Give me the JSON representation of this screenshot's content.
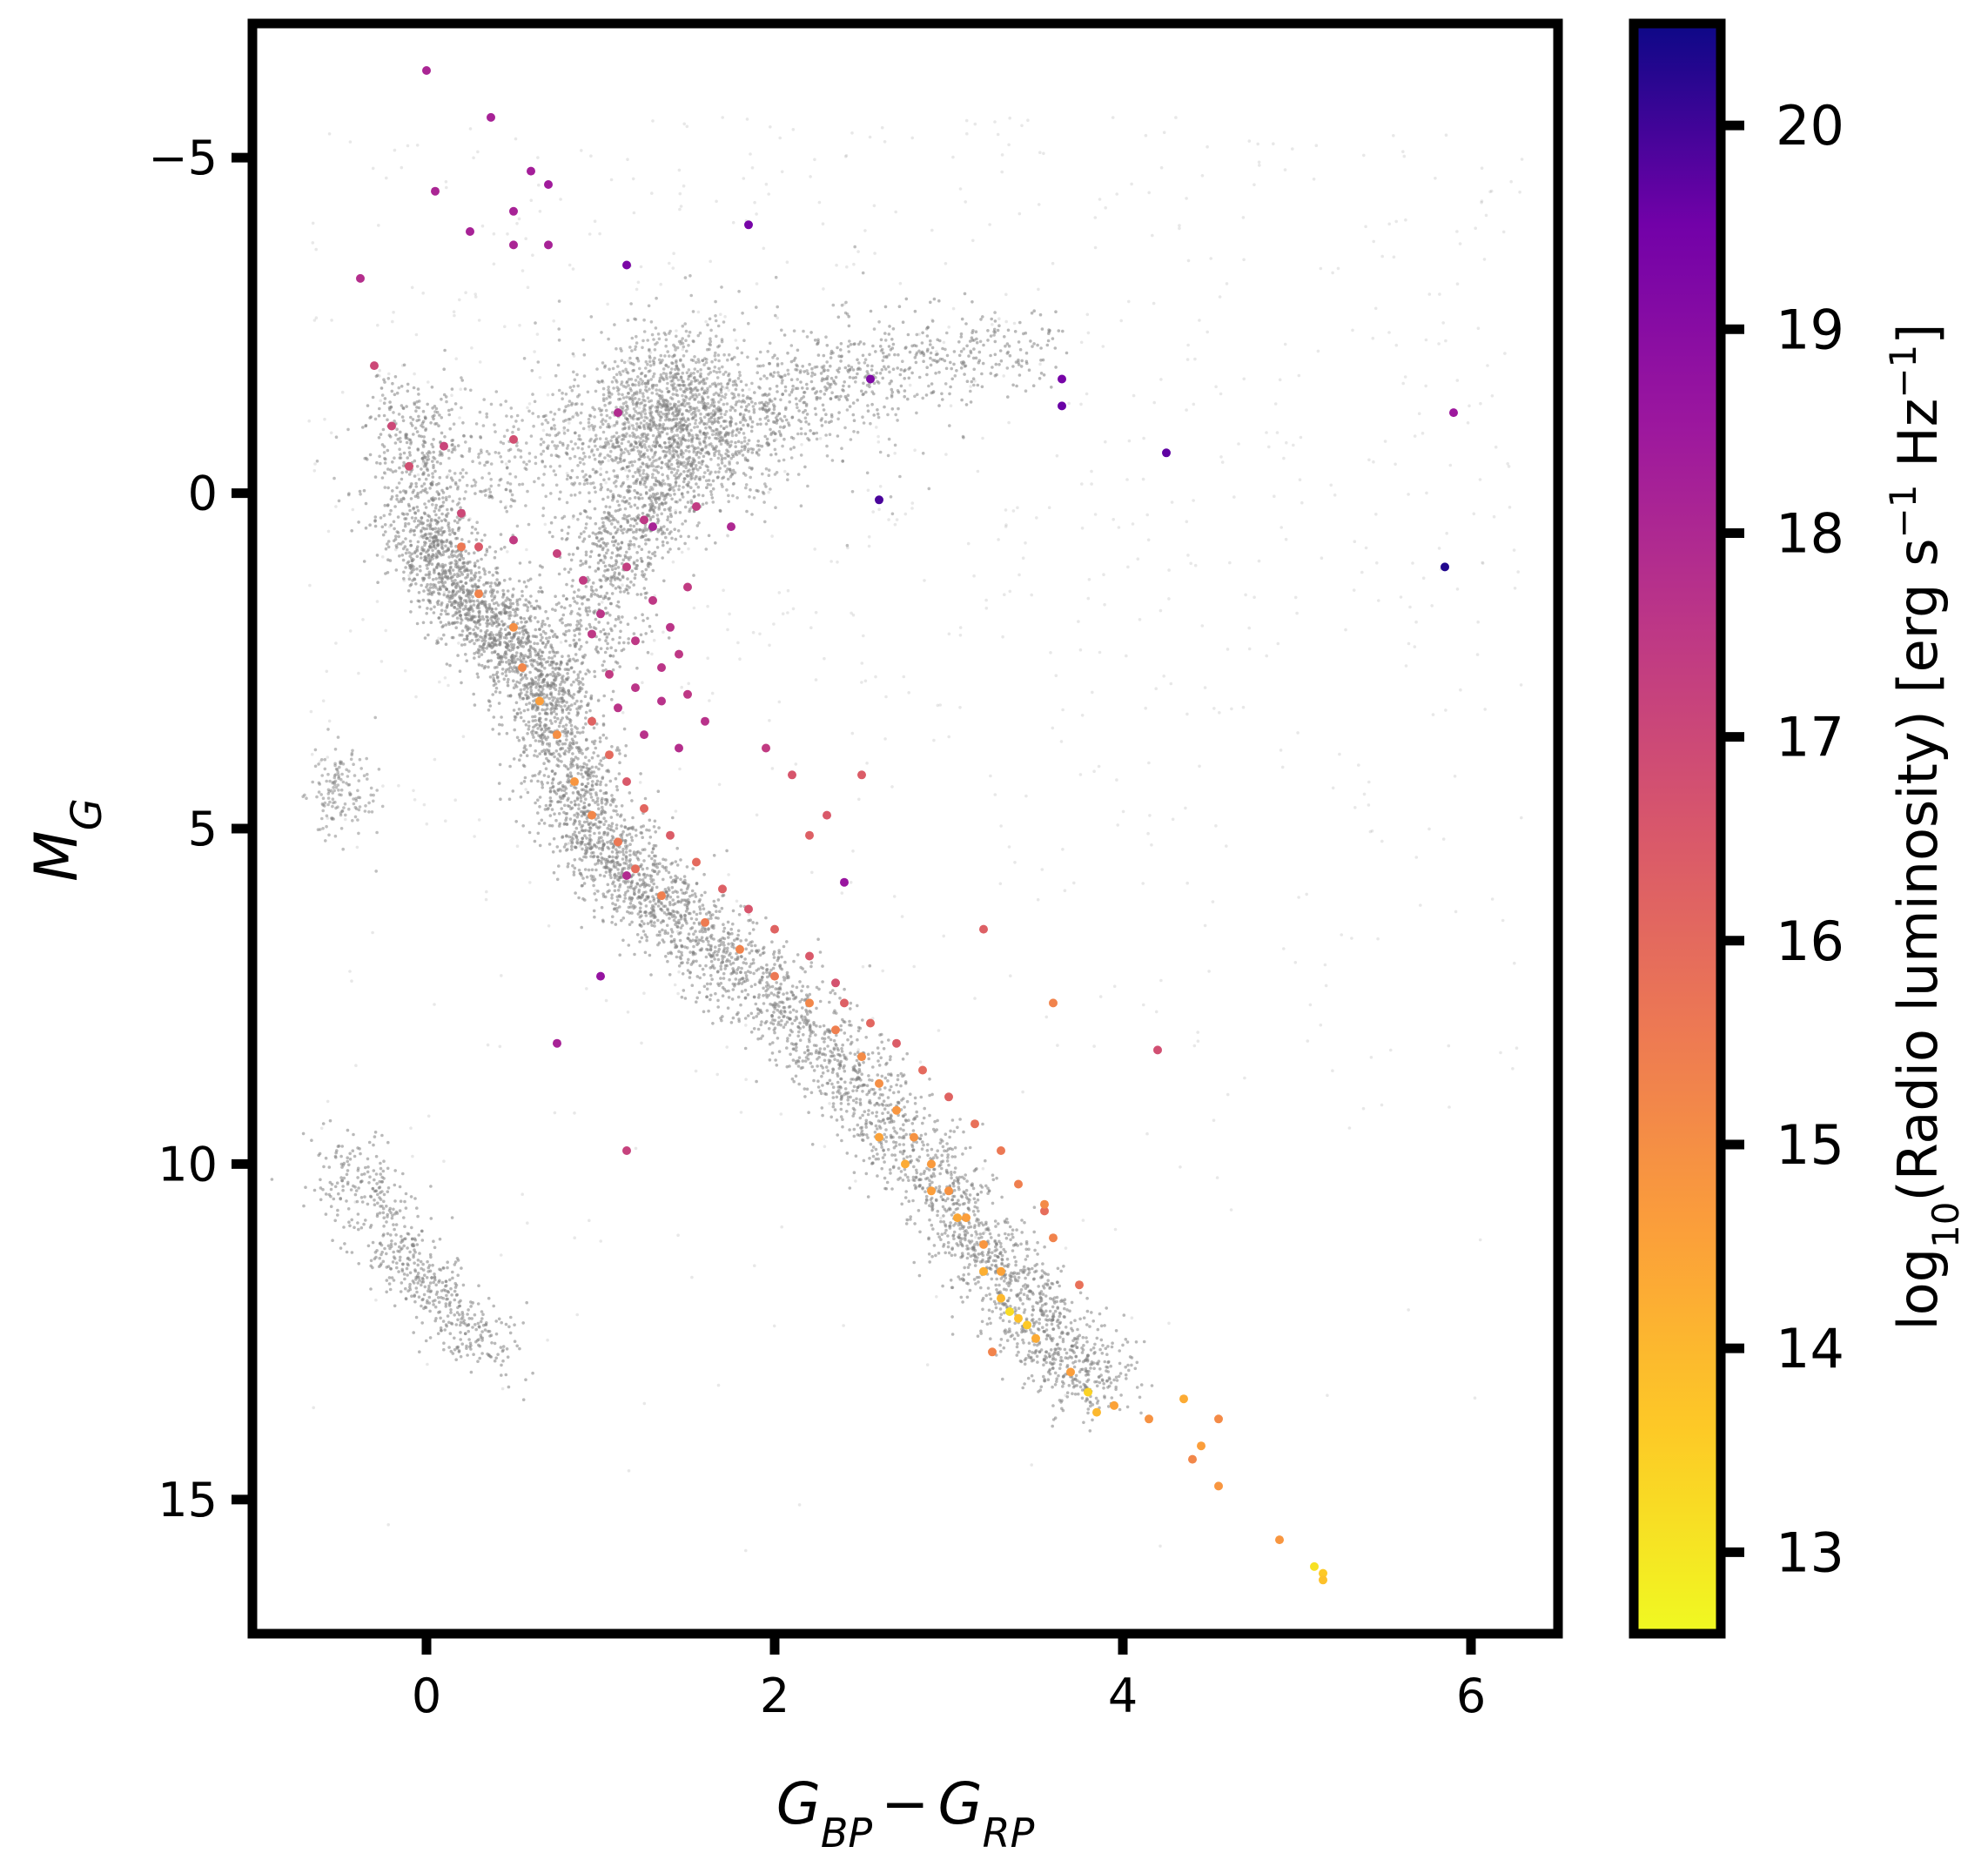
{
  "chart_data": {
    "type": "scatter",
    "title": "",
    "xlabel": {
      "base": "G",
      "sub1": "BP",
      "minus": "−",
      "base2": "G",
      "sub2": "RP"
    },
    "ylabel": {
      "base": "M",
      "sub": "G"
    },
    "xlim": [
      -1.0,
      6.5
    ],
    "ylim": [
      17.0,
      -7.0
    ],
    "x_ticks": [
      0,
      2,
      4,
      6
    ],
    "y_ticks": [
      -5,
      0,
      5,
      10,
      15
    ],
    "x_tick_labels": [
      "0",
      "2",
      "4",
      "6"
    ],
    "y_tick_labels": [
      "−5",
      "0",
      "5",
      "10",
      "15"
    ],
    "grid": false,
    "colorbar": {
      "label_prefix": "log",
      "label_sub": "10",
      "label_main": "(Radio luminosity) [erg s",
      "label_sup1": "−1",
      "label_mid": " Hz",
      "label_sup2": "−1",
      "label_end": "]",
      "colormap": "plasma",
      "range": [
        12.6,
        20.5
      ],
      "ticks": [
        13,
        14,
        15,
        16,
        17,
        18,
        19,
        20
      ],
      "tick_labels": [
        "13",
        "14",
        "15",
        "16",
        "17",
        "18",
        "19",
        "20"
      ]
    },
    "series": [
      {
        "role": "background",
        "color": "#808080",
        "description_of_density": "Gaia reference sample",
        "clumps": [
          {
            "cx": 1.4,
            "cy": -1.2,
            "sx": 0.25,
            "sy": 0.6,
            "n": 1200
          },
          {
            "cx": 0.8,
            "cy": -0.5,
            "sx": 0.5,
            "sy": 0.5,
            "n": 500
          },
          {
            "cx": 2.0,
            "cy": -1.5,
            "sx": 0.6,
            "sy": 0.7,
            "n": 300
          },
          {
            "cx": -0.5,
            "cy": 4.4,
            "sx": 0.1,
            "sy": 0.4,
            "n": 150
          }
        ],
        "tracks": [
          {
            "points": [
              [
                -0.1,
                -1.5
              ],
              [
                0.0,
                0.5
              ],
              [
                0.1,
                1.2
              ],
              [
                0.3,
                1.8
              ],
              [
                0.5,
                2.2
              ],
              [
                0.7,
                2.9
              ],
              [
                0.8,
                3.8
              ],
              [
                0.9,
                4.9
              ],
              [
                1.1,
                5.6
              ],
              [
                1.4,
                6.3
              ],
              [
                1.8,
                7.1
              ],
              [
                2.2,
                8.0
              ],
              [
                2.6,
                9.2
              ],
              [
                3.0,
                10.5
              ],
              [
                3.3,
                11.6
              ],
              [
                3.6,
                12.6
              ],
              [
                3.9,
                13.4
              ]
            ],
            "width": 0.14,
            "n": 5500
          },
          {
            "points": [
              [
                0.9,
                2.5
              ],
              [
                1.0,
                1.5
              ],
              [
                1.1,
                0.6
              ],
              [
                1.3,
                0.2
              ],
              [
                1.7,
                -0.8
              ],
              [
                2.2,
                -1.6
              ],
              [
                2.8,
                -2.0
              ],
              [
                3.5,
                -2.2
              ]
            ],
            "width": 0.16,
            "n": 1400
          },
          {
            "points": [
              [
                -0.5,
                9.8
              ],
              [
                -0.3,
                10.6
              ],
              [
                -0.1,
                11.5
              ],
              [
                0.1,
                12.1
              ],
              [
                0.4,
                12.8
              ]
            ],
            "width": 0.12,
            "n": 600
          }
        ],
        "scatter_halo": {
          "xmin": -0.7,
          "xmax": 6.3,
          "ymin": -5.6,
          "ymax": 16.2,
          "n": 900
        }
      },
      {
        "role": "radio",
        "name": "",
        "points": [
          [
            0.0,
            -6.3,
            18.1
          ],
          [
            0.37,
            -5.6,
            18.2
          ],
          [
            0.05,
            -4.5,
            18.1
          ],
          [
            0.6,
            -4.8,
            18.3
          ],
          [
            0.7,
            -4.6,
            18.4
          ],
          [
            0.25,
            -3.9,
            18.2
          ],
          [
            0.5,
            -3.7,
            18.1
          ],
          [
            0.7,
            -3.7,
            18.2
          ],
          [
            -0.38,
            -3.2,
            17.8
          ],
          [
            1.85,
            -4.0,
            19.4
          ],
          [
            1.15,
            -3.4,
            19.3
          ],
          [
            0.5,
            -4.2,
            18.2
          ],
          [
            2.55,
            -1.7,
            19.2
          ],
          [
            3.65,
            -1.7,
            19.4
          ],
          [
            3.65,
            -1.3,
            19.6
          ],
          [
            4.25,
            -0.6,
            19.7
          ],
          [
            2.6,
            0.1,
            19.9
          ],
          [
            5.85,
            1.1,
            20.3
          ],
          [
            5.9,
            -1.2,
            18.5
          ],
          [
            -0.3,
            -1.9,
            17.0
          ],
          [
            0.5,
            -0.8,
            16.8
          ],
          [
            1.1,
            -1.2,
            17.9
          ],
          [
            -0.2,
            -1.0,
            17.0
          ],
          [
            0.1,
            -0.7,
            17.1
          ],
          [
            -0.1,
            -0.4,
            16.8
          ],
          [
            0.2,
            0.3,
            17.0
          ],
          [
            0.3,
            0.8,
            16.5
          ],
          [
            0.5,
            0.7,
            17.4
          ],
          [
            1.25,
            0.4,
            17.5
          ],
          [
            1.3,
            0.5,
            18.2
          ],
          [
            1.55,
            0.2,
            17.4
          ],
          [
            1.75,
            0.5,
            18.0
          ],
          [
            0.75,
            0.9,
            17.2
          ],
          [
            0.9,
            1.3,
            17.4
          ],
          [
            1.0,
            1.8,
            17.6
          ],
          [
            1.2,
            2.2,
            17.5
          ],
          [
            1.35,
            2.6,
            17.6
          ],
          [
            1.5,
            3.0,
            17.5
          ],
          [
            1.1,
            3.2,
            17.6
          ],
          [
            1.25,
            3.6,
            17.7
          ],
          [
            1.45,
            3.8,
            17.8
          ],
          [
            1.6,
            3.4,
            17.7
          ],
          [
            1.05,
            2.7,
            17.4
          ],
          [
            1.3,
            1.6,
            17.5
          ],
          [
            1.4,
            2.0,
            17.6
          ],
          [
            1.15,
            1.1,
            17.3
          ],
          [
            0.95,
            2.1,
            17.5
          ],
          [
            1.5,
            1.4,
            17.4
          ],
          [
            1.35,
            3.1,
            17.7
          ],
          [
            1.2,
            2.9,
            17.6
          ],
          [
            1.45,
            2.4,
            17.5
          ],
          [
            0.2,
            0.8,
            15.6
          ],
          [
            0.3,
            1.5,
            15.3
          ],
          [
            0.5,
            2.0,
            15.0
          ],
          [
            0.55,
            2.6,
            15.2
          ],
          [
            0.65,
            3.1,
            14.6
          ],
          [
            0.75,
            3.6,
            15.0
          ],
          [
            0.85,
            4.3,
            14.8
          ],
          [
            0.95,
            4.8,
            15.2
          ],
          [
            1.1,
            5.2,
            15.6
          ],
          [
            1.2,
            5.6,
            15.9
          ],
          [
            1.35,
            6.0,
            15.4
          ],
          [
            0.95,
            3.4,
            16.2
          ],
          [
            1.05,
            3.9,
            16.0
          ],
          [
            1.15,
            4.3,
            16.5
          ],
          [
            1.25,
            4.7,
            16.1
          ],
          [
            1.4,
            5.1,
            16.4
          ],
          [
            1.55,
            5.5,
            16.0
          ],
          [
            1.7,
            5.9,
            16.3
          ],
          [
            1.85,
            6.2,
            16.6
          ],
          [
            2.0,
            6.5,
            16.2
          ],
          [
            2.2,
            6.9,
            16.5
          ],
          [
            2.35,
            7.3,
            16.7
          ],
          [
            1.6,
            6.4,
            15.5
          ],
          [
            1.8,
            6.8,
            15.3
          ],
          [
            2.0,
            7.2,
            15.6
          ],
          [
            2.2,
            7.6,
            15.2
          ],
          [
            2.35,
            8.0,
            15.4
          ],
          [
            2.5,
            8.4,
            15.1
          ],
          [
            2.6,
            8.8,
            15.0
          ],
          [
            2.7,
            9.2,
            14.8
          ],
          [
            2.8,
            9.6,
            14.9
          ],
          [
            2.9,
            10.0,
            14.7
          ],
          [
            3.0,
            10.4,
            14.9
          ],
          [
            3.1,
            10.8,
            14.6
          ],
          [
            3.2,
            11.2,
            14.8
          ],
          [
            3.3,
            11.6,
            14.5
          ],
          [
            2.4,
            7.6,
            16.3
          ],
          [
            2.55,
            7.9,
            16.1
          ],
          [
            2.7,
            8.2,
            16.4
          ],
          [
            2.85,
            8.6,
            16.0
          ],
          [
            3.0,
            9.0,
            16.2
          ],
          [
            3.15,
            9.4,
            15.8
          ],
          [
            3.3,
            9.8,
            15.6
          ],
          [
            3.4,
            10.3,
            15.4
          ],
          [
            3.55,
            10.7,
            15.9
          ],
          [
            3.6,
            11.1,
            15.3
          ],
          [
            2.6,
            9.6,
            14.5
          ],
          [
            2.75,
            10.0,
            14.3
          ],
          [
            2.9,
            10.4,
            14.6
          ],
          [
            3.05,
            10.8,
            14.4
          ],
          [
            3.2,
            11.6,
            14.2
          ],
          [
            3.3,
            12.0,
            14.0
          ],
          [
            3.4,
            12.3,
            13.8
          ],
          [
            3.5,
            12.6,
            14.3
          ],
          [
            2.1,
            4.2,
            16.6
          ],
          [
            2.3,
            4.8,
            16.5
          ],
          [
            2.5,
            4.2,
            16.4
          ],
          [
            1.95,
            3.8,
            17.4
          ],
          [
            2.2,
            5.1,
            16.3
          ],
          [
            2.4,
            5.8,
            18.6
          ],
          [
            3.2,
            6.5,
            16.3
          ],
          [
            3.6,
            7.6,
            15.3
          ],
          [
            4.2,
            8.3,
            16.8
          ],
          [
            0.75,
            8.2,
            18.2
          ],
          [
            1.0,
            7.2,
            18.7
          ],
          [
            1.15,
            9.8,
            17.2
          ],
          [
            1.15,
            5.7,
            17.9
          ],
          [
            3.75,
            11.8,
            15.8
          ],
          [
            3.55,
            10.6,
            15.1
          ],
          [
            3.8,
            13.4,
            13.4
          ],
          [
            3.85,
            13.7,
            14.0
          ],
          [
            3.95,
            13.6,
            14.5
          ],
          [
            4.15,
            13.8,
            14.9
          ],
          [
            4.35,
            13.5,
            14.3
          ],
          [
            4.4,
            14.4,
            15.2
          ],
          [
            4.45,
            14.2,
            14.6
          ],
          [
            4.55,
            13.8,
            15.1
          ],
          [
            4.55,
            14.8,
            14.8
          ],
          [
            4.9,
            15.6,
            14.8
          ],
          [
            5.1,
            16.0,
            13.1
          ],
          [
            5.15,
            16.1,
            13.6
          ],
          [
            5.15,
            16.2,
            13.8
          ],
          [
            3.35,
            12.2,
            13.2
          ],
          [
            3.45,
            12.4,
            13.6
          ],
          [
            3.25,
            12.8,
            15.3
          ],
          [
            3.7,
            13.1,
            14.6
          ]
        ]
      }
    ]
  }
}
